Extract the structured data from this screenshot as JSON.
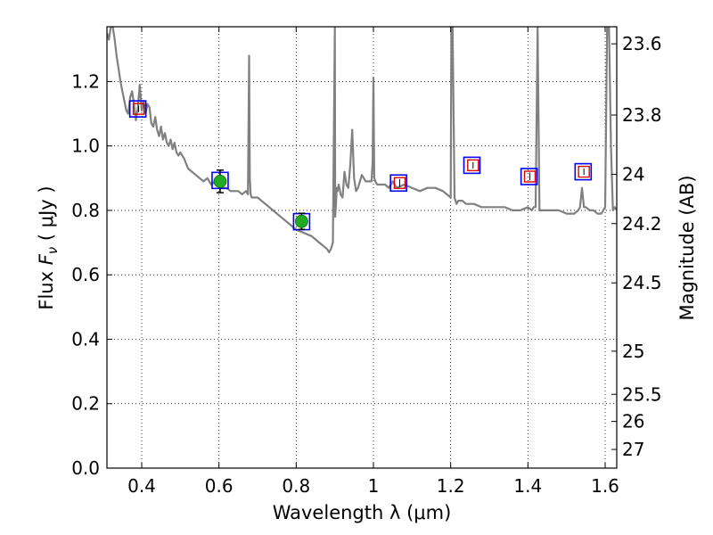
{
  "chart_data": {
    "type": "line",
    "xlabel": "Wavelength  λ (μm)",
    "ylabel": "Flux  F_ν  ( μJy )",
    "ylabel_parts": {
      "prefix": "Flux  ",
      "symbol": "F",
      "subscript": "ν",
      "unit": "  ( μJy )"
    },
    "y2label": "Magnitude (AB)",
    "xlim": [
      0.31,
      1.63
    ],
    "ylim": [
      0.0,
      1.37
    ],
    "grid": "dotted",
    "x_ticks": [
      {
        "value": 0.4,
        "label": "0.4"
      },
      {
        "value": 0.6,
        "label": "0.6"
      },
      {
        "value": 0.8,
        "label": "0.8"
      },
      {
        "value": 1.0,
        "label": "1"
      },
      {
        "value": 1.2,
        "label": "1.2"
      },
      {
        "value": 1.4,
        "label": "1.4"
      },
      {
        "value": 1.6,
        "label": "1.6"
      }
    ],
    "y_ticks": [
      {
        "value": 0.0,
        "label": "0.0"
      },
      {
        "value": 0.2,
        "label": "0.2"
      },
      {
        "value": 0.4,
        "label": "0.4"
      },
      {
        "value": 0.6,
        "label": "0.6"
      },
      {
        "value": 0.8,
        "label": "0.8"
      },
      {
        "value": 1.0,
        "label": "1.0"
      },
      {
        "value": 1.2,
        "label": "1.2"
      }
    ],
    "y2_ticks": [
      {
        "flux": 1.317,
        "label": "23.6"
      },
      {
        "flux": 1.096,
        "label": "23.8"
      },
      {
        "flux": 0.912,
        "label": "24"
      },
      {
        "flux": 0.759,
        "label": "24.2"
      },
      {
        "flux": 0.575,
        "label": "24.5"
      },
      {
        "flux": 0.363,
        "label": "25"
      },
      {
        "flux": 0.229,
        "label": "25.5"
      },
      {
        "flux": 0.145,
        "label": "26"
      },
      {
        "flux": 0.058,
        "label": "27"
      }
    ],
    "series": [
      {
        "name": "model-spectrum",
        "kind": "line",
        "color": "#808080",
        "x": [
          0.31,
          0.315,
          0.32,
          0.325,
          0.33,
          0.335,
          0.34,
          0.345,
          0.35,
          0.355,
          0.36,
          0.365,
          0.37,
          0.375,
          0.38,
          0.385,
          0.39,
          0.395,
          0.4,
          0.405,
          0.41,
          0.415,
          0.42,
          0.425,
          0.43,
          0.435,
          0.44,
          0.445,
          0.45,
          0.455,
          0.46,
          0.465,
          0.47,
          0.475,
          0.48,
          0.485,
          0.49,
          0.495,
          0.5,
          0.51,
          0.52,
          0.53,
          0.54,
          0.55,
          0.56,
          0.57,
          0.58,
          0.59,
          0.6,
          0.61,
          0.62,
          0.63,
          0.64,
          0.65,
          0.66,
          0.67,
          0.675,
          0.678,
          0.68,
          0.682,
          0.685,
          0.69,
          0.7,
          0.72,
          0.74,
          0.76,
          0.78,
          0.8,
          0.82,
          0.84,
          0.86,
          0.87,
          0.88,
          0.885,
          0.89,
          0.895,
          0.9,
          0.901,
          0.903,
          0.905,
          0.907,
          0.91,
          0.915,
          0.92,
          0.925,
          0.93,
          0.935,
          0.94,
          0.945,
          0.95,
          0.955,
          0.96,
          0.97,
          0.98,
          0.99,
          0.995,
          0.998,
          1.0,
          1.002,
          1.005,
          1.01,
          1.02,
          1.03,
          1.04,
          1.05,
          1.06,
          1.08,
          1.1,
          1.12,
          1.14,
          1.16,
          1.18,
          1.19,
          1.2,
          1.202,
          1.205,
          1.21,
          1.215,
          1.22,
          1.23,
          1.24,
          1.26,
          1.28,
          1.3,
          1.32,
          1.34,
          1.36,
          1.38,
          1.4,
          1.41,
          1.415,
          1.42,
          1.425,
          1.43,
          1.44,
          1.46,
          1.48,
          1.5,
          1.52,
          1.53,
          1.535,
          1.54,
          1.545,
          1.55,
          1.56,
          1.57,
          1.58,
          1.59,
          1.6,
          1.605,
          1.61,
          1.615,
          1.62,
          1.625,
          1.63
        ],
        "y": [
          1.35,
          1.33,
          1.37,
          1.37,
          1.33,
          1.28,
          1.24,
          1.2,
          1.17,
          1.14,
          1.11,
          1.1,
          1.15,
          1.17,
          1.13,
          1.08,
          1.12,
          1.19,
          1.11,
          1.14,
          1.1,
          1.13,
          1.12,
          1.07,
          1.06,
          1.09,
          1.05,
          1.03,
          1.06,
          1.02,
          1.04,
          1.01,
          1.0,
          1.02,
          0.99,
          1.01,
          0.98,
          0.97,
          0.98,
          0.96,
          0.93,
          0.92,
          0.91,
          0.9,
          0.89,
          0.9,
          0.88,
          0.89,
          0.88,
          0.87,
          0.87,
          0.86,
          0.86,
          0.86,
          0.85,
          0.86,
          0.85,
          1.28,
          0.9,
          0.85,
          0.84,
          0.84,
          0.84,
          0.82,
          0.8,
          0.78,
          0.76,
          0.74,
          0.73,
          0.72,
          0.7,
          0.69,
          0.68,
          0.67,
          0.68,
          0.7,
          1.37,
          0.78,
          0.82,
          0.87,
          0.86,
          0.88,
          0.85,
          0.84,
          0.92,
          0.88,
          0.87,
          0.94,
          1.05,
          0.9,
          0.86,
          0.87,
          0.91,
          0.89,
          0.89,
          0.89,
          0.95,
          1.21,
          0.9,
          0.89,
          0.88,
          0.88,
          0.88,
          0.87,
          0.89,
          0.87,
          0.88,
          0.87,
          0.86,
          0.87,
          0.87,
          0.86,
          0.85,
          0.84,
          1.37,
          1.37,
          0.84,
          0.82,
          0.83,
          0.83,
          0.82,
          0.82,
          0.81,
          0.81,
          0.81,
          0.81,
          0.8,
          0.8,
          0.81,
          0.8,
          0.81,
          0.81,
          1.37,
          0.8,
          0.8,
          0.8,
          0.8,
          0.79,
          0.79,
          0.8,
          0.81,
          0.87,
          0.81,
          0.81,
          0.8,
          0.8,
          0.79,
          0.79,
          0.81,
          1.37,
          1.37,
          1.0,
          0.8,
          0.81,
          0.8
        ]
      },
      {
        "name": "observed-photometry",
        "kind": "points",
        "color": "#22aa22",
        "points": [
          {
            "x": 0.603,
            "y": 0.89,
            "err": 0.035
          },
          {
            "x": 0.814,
            "y": 0.766,
            "err": 0.025
          }
        ]
      },
      {
        "name": "model-synthetic-photometry",
        "kind": "squares",
        "color": "#0000ff",
        "points": [
          {
            "x": 0.39,
            "y": 1.115
          },
          {
            "x": 0.603,
            "y": 0.893
          },
          {
            "x": 0.814,
            "y": 0.765
          },
          {
            "x": 1.065,
            "y": 0.885
          },
          {
            "x": 1.255,
            "y": 0.94
          },
          {
            "x": 1.403,
            "y": 0.905
          },
          {
            "x": 1.543,
            "y": 0.92
          }
        ]
      },
      {
        "name": "upper-limits",
        "kind": "open-squares",
        "color": "#dd0000",
        "points": [
          {
            "x": 0.392,
            "y": 1.115,
            "err": 0.01
          },
          {
            "x": 1.068,
            "y": 0.885,
            "err": 0.012
          },
          {
            "x": 1.258,
            "y": 0.94,
            "err": 0.01
          },
          {
            "x": 1.405,
            "y": 0.905,
            "err": 0.012
          },
          {
            "x": 1.545,
            "y": 0.92,
            "err": 0.01
          }
        ]
      }
    ]
  }
}
